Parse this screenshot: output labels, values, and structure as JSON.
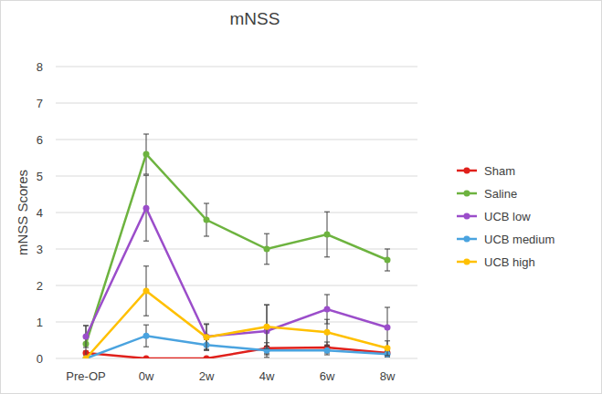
{
  "chart_data": {
    "type": "line",
    "title": "mNSS",
    "y_label": "mNSS Scores",
    "categories": [
      "Pre-OP",
      "0w",
      "2w",
      "4w",
      "6w",
      "8w"
    ],
    "series": [
      {
        "name": "Sham",
        "color": "#e0201b",
        "values": [
          0.15,
          0.0,
          0.0,
          0.28,
          0.3,
          0.15
        ],
        "errors": [
          0.05,
          0.0,
          0.0,
          0.15,
          0.15,
          0.05
        ]
      },
      {
        "name": "Saline",
        "color": "#6db33f",
        "values": [
          0.4,
          5.6,
          3.8,
          3.0,
          3.4,
          2.7
        ],
        "errors": [
          0.5,
          0.55,
          0.45,
          0.42,
          0.62,
          0.3
        ]
      },
      {
        "name": "UCB low",
        "color": "#9b4dca",
        "values": [
          0.6,
          4.12,
          0.6,
          0.75,
          1.35,
          0.85
        ],
        "errors": [
          0.3,
          0.9,
          0.35,
          0.72,
          0.4,
          0.55
        ]
      },
      {
        "name": "UCB medium",
        "color": "#4aa3df",
        "values": [
          0.0,
          0.62,
          0.37,
          0.22,
          0.22,
          0.12
        ],
        "errors": [
          0.0,
          0.3,
          0.15,
          0.12,
          0.12,
          0.08
        ]
      },
      {
        "name": "UCB high",
        "color": "#ffc000",
        "values": [
          0.0,
          1.85,
          0.58,
          0.87,
          0.72,
          0.28
        ],
        "errors": [
          0.0,
          0.68,
          0.35,
          0.6,
          0.35,
          0.2
        ]
      }
    ],
    "ylim": [
      0,
      8
    ],
    "yticks": [
      0,
      1,
      2,
      3,
      4,
      5,
      6,
      7,
      8
    ],
    "grid": true,
    "legend": "right",
    "marker": "circle",
    "line_style": "solid"
  }
}
